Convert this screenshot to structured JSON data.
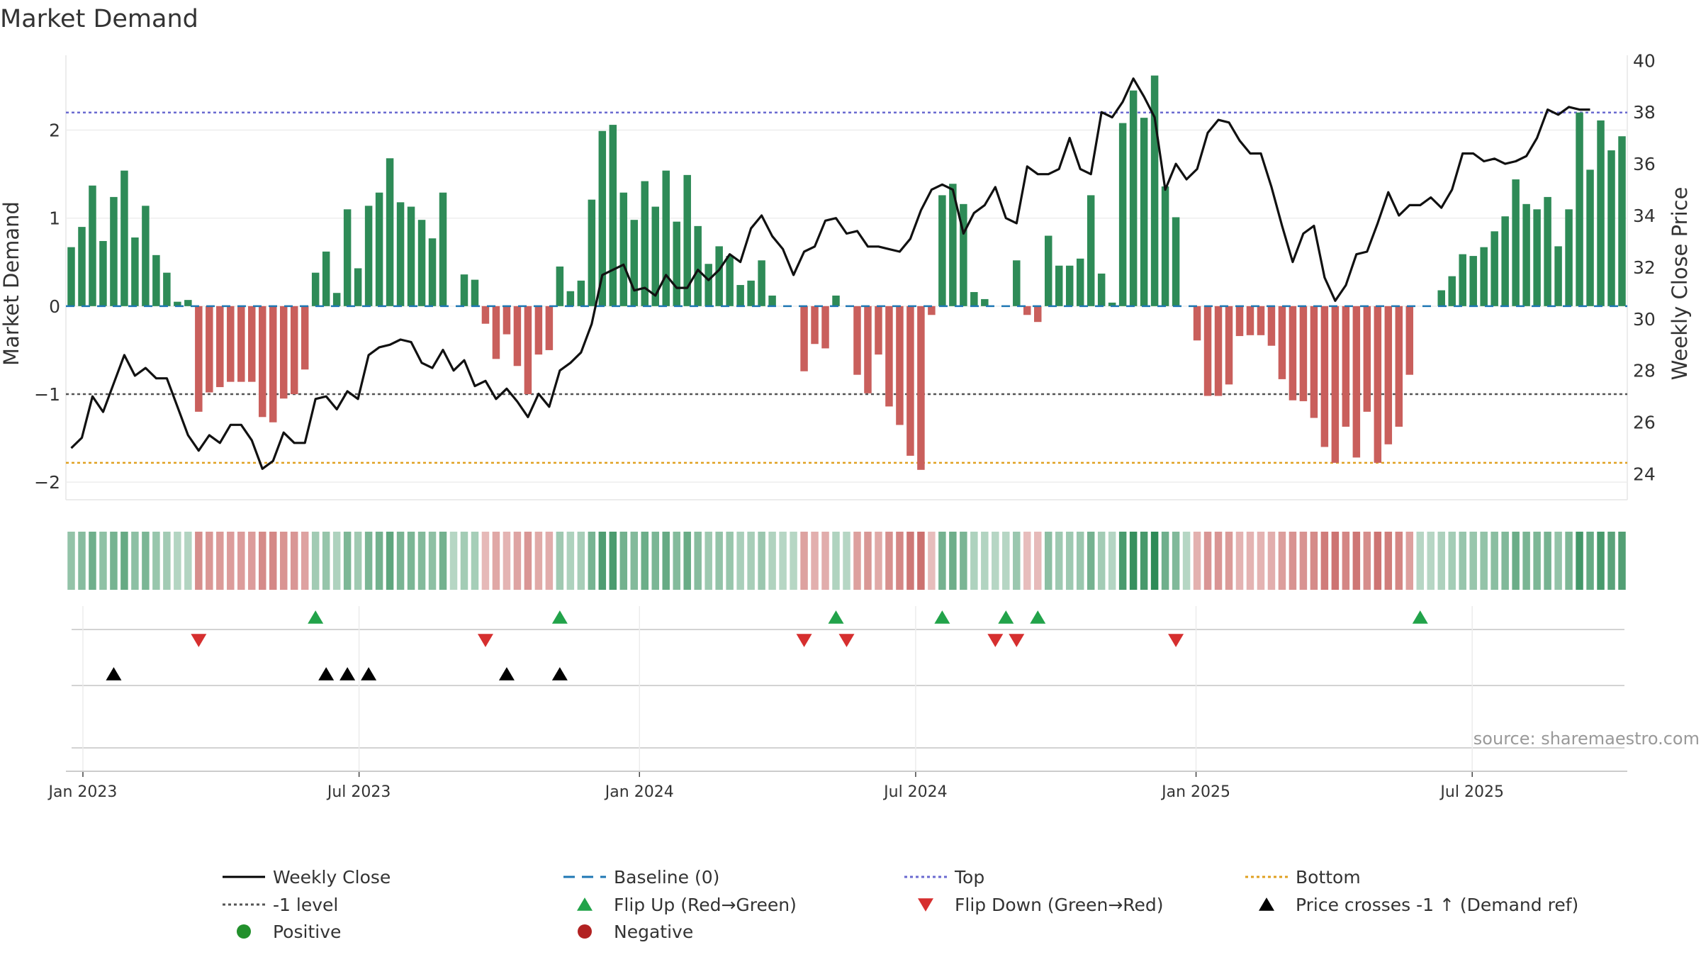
{
  "chart_data": {
    "type": "bar",
    "title": "Market Demand",
    "ylabel_left": "Market Demand",
    "ylabel_right": "Weekly Close Price",
    "source": "source: sharemaestro.com",
    "left_axis": {
      "ylim": [
        -2.2,
        2.85
      ],
      "ticks": [
        2,
        1,
        0,
        -1,
        -2
      ],
      "tick_labels": [
        "2",
        "1",
        "0",
        "−1",
        "−2"
      ]
    },
    "right_axis": {
      "ylim": [
        23,
        40.2
      ],
      "ticks": [
        40,
        38,
        36,
        34,
        32,
        30,
        28,
        26,
        24
      ],
      "tick_labels": [
        "40",
        "38",
        "36",
        "34",
        "32",
        "30",
        "28",
        "26",
        "24"
      ]
    },
    "x_ticks": [
      {
        "label": "Jan 2023",
        "week": 1.6
      },
      {
        "label": "Jul 2023",
        "week": 27.6
      },
      {
        "label": "Jan 2024",
        "week": 54.0
      },
      {
        "label": "Jul 2024",
        "week": 80.0
      },
      {
        "label": "Jan 2025",
        "week": 106.4
      },
      {
        "label": "Jul 2025",
        "week": 132.4
      }
    ],
    "reference_lines": {
      "top": 2.2,
      "bottom": -1.78,
      "minus_one": -1,
      "baseline": 0
    },
    "demand": [
      0.67,
      0.9,
      1.37,
      0.74,
      1.24,
      1.54,
      0.78,
      1.14,
      0.58,
      0.38,
      0.05,
      0.07,
      -1.2,
      -0.98,
      -0.92,
      -0.86,
      -0.86,
      -0.86,
      -1.26,
      -1.32,
      -1.05,
      -1.0,
      -0.72,
      0.38,
      0.62,
      0.15,
      1.1,
      0.43,
      1.14,
      1.29,
      1.68,
      1.18,
      1.13,
      0.98,
      0.77,
      1.29,
      0.0,
      0.36,
      0.3,
      -0.2,
      -0.6,
      -0.32,
      -0.68,
      -1.0,
      -0.55,
      -0.5,
      0.45,
      0.17,
      0.29,
      1.21,
      1.99,
      2.06,
      1.29,
      0.98,
      1.42,
      1.13,
      1.54,
      0.96,
      1.49,
      0.91,
      0.48,
      0.68,
      0.57,
      0.24,
      0.29,
      0.52,
      0.12,
      0.0,
      0.0,
      -0.74,
      -0.43,
      -0.48,
      0.12,
      0.0,
      -0.78,
      -0.99,
      -0.55,
      -1.14,
      -1.35,
      -1.7,
      -1.86,
      -0.1,
      1.26,
      1.39,
      1.16,
      0.16,
      0.08,
      0.0,
      0.0,
      0.52,
      -0.1,
      -0.18,
      0.8,
      0.46,
      0.46,
      0.54,
      1.26,
      0.37,
      0.04,
      2.08,
      2.45,
      2.14,
      2.62,
      1.36,
      1.01,
      0.0,
      -0.39,
      -1.02,
      -1.02,
      -0.89,
      -0.34,
      -0.33,
      -0.33,
      -0.45,
      -0.83,
      -1.07,
      -1.08,
      -1.27,
      -1.6,
      -1.78,
      -1.37,
      -1.72,
      -1.2,
      -1.78,
      -1.57,
      -1.37,
      -0.78,
      0.0,
      0.0,
      0.18,
      0.34,
      0.59,
      0.57,
      0.67,
      0.85,
      1.02,
      1.44,
      1.16,
      1.1,
      1.24,
      0.68,
      1.1,
      2.2,
      1.55,
      2.11,
      1.77,
      1.93
    ],
    "price": [
      25.0,
      25.4,
      27.0,
      26.4,
      27.5,
      28.6,
      27.8,
      28.1,
      27.7,
      27.7,
      26.6,
      25.5,
      24.9,
      25.5,
      25.2,
      25.9,
      25.9,
      25.3,
      24.2,
      24.5,
      25.6,
      25.2,
      25.2,
      26.9,
      27.0,
      26.5,
      27.2,
      26.9,
      28.6,
      28.9,
      29.0,
      29.2,
      29.1,
      28.3,
      28.1,
      28.8,
      28.0,
      28.4,
      27.4,
      27.6,
      26.9,
      27.3,
      26.8,
      26.2,
      27.1,
      26.6,
      28.0,
      28.3,
      28.7,
      29.8,
      31.7,
      31.9,
      32.1,
      31.1,
      31.2,
      30.9,
      31.7,
      31.2,
      31.2,
      31.9,
      31.5,
      31.9,
      32.5,
      32.2,
      33.5,
      34.0,
      33.2,
      32.7,
      31.7,
      32.6,
      32.8,
      33.8,
      33.9,
      33.3,
      33.4,
      32.8,
      32.8,
      32.7,
      32.6,
      33.1,
      34.2,
      35.0,
      35.2,
      35.0,
      33.3,
      34.1,
      34.4,
      35.1,
      33.9,
      33.7,
      35.9,
      35.6,
      35.6,
      35.8,
      37.0,
      35.8,
      35.6,
      38.0,
      37.8,
      38.4,
      39.3,
      38.6,
      37.8,
      35.0,
      36.0,
      35.4,
      35.8,
      37.2,
      37.7,
      37.6,
      36.9,
      36.4,
      36.4,
      35.1,
      33.6,
      32.2,
      33.3,
      33.6,
      31.6,
      30.7,
      31.3,
      32.5,
      32.6,
      33.7,
      34.9,
      34.0,
      34.4,
      34.4,
      34.7,
      34.3,
      35.0,
      36.4,
      36.4,
      36.1,
      36.2,
      36.0,
      36.1,
      36.3,
      37.0,
      38.1,
      37.9,
      38.2,
      38.1,
      38.1
    ],
    "heat_strip": {
      "weeks": 146,
      "positive_color": "#2e8b57",
      "negative_color": "#c0504d"
    },
    "signal_rows": [
      {
        "name": "Flip Up (Red→Green)",
        "weeks": [
          23,
          46,
          72,
          82,
          88,
          91,
          127
        ],
        "color": "#22a34a",
        "marker": "triangle-up"
      },
      {
        "name": "Flip Down (Green→Red)",
        "weeks": [
          12,
          39,
          69,
          73,
          87,
          89,
          104
        ],
        "color": "#d62f2f",
        "marker": "triangle-down"
      },
      {
        "name": "Price crosses -1 ↑ (Demand ref)",
        "weeks": [
          4,
          24,
          26,
          28,
          41,
          46
        ],
        "color": "#000000",
        "marker": "triangle-up"
      }
    ],
    "legend": [
      {
        "label": "Weekly Close",
        "kind": "line-solid",
        "color": "#000000"
      },
      {
        "label": "Baseline (0)",
        "kind": "line-dash",
        "color": "#1f77b4"
      },
      {
        "label": "Top",
        "kind": "line-dot",
        "color": "#6a6ad0"
      },
      {
        "label": "Bottom",
        "kind": "line-dot",
        "color": "#e0a020"
      },
      {
        "label": "-1 level",
        "kind": "line-dot",
        "color": "#555555"
      },
      {
        "label": "Flip Up (Red→Green)",
        "kind": "tri-up",
        "color": "#22a34a"
      },
      {
        "label": "Flip Down (Green→Red)",
        "kind": "tri-down",
        "color": "#d62f2f"
      },
      {
        "label": "Price crosses -1 ↑ (Demand ref)",
        "kind": "tri-up",
        "color": "#000000"
      },
      {
        "label": "Positive",
        "kind": "dot",
        "color": "#22902c"
      },
      {
        "label": "Negative",
        "kind": "dot",
        "color": "#b22222"
      }
    ]
  }
}
